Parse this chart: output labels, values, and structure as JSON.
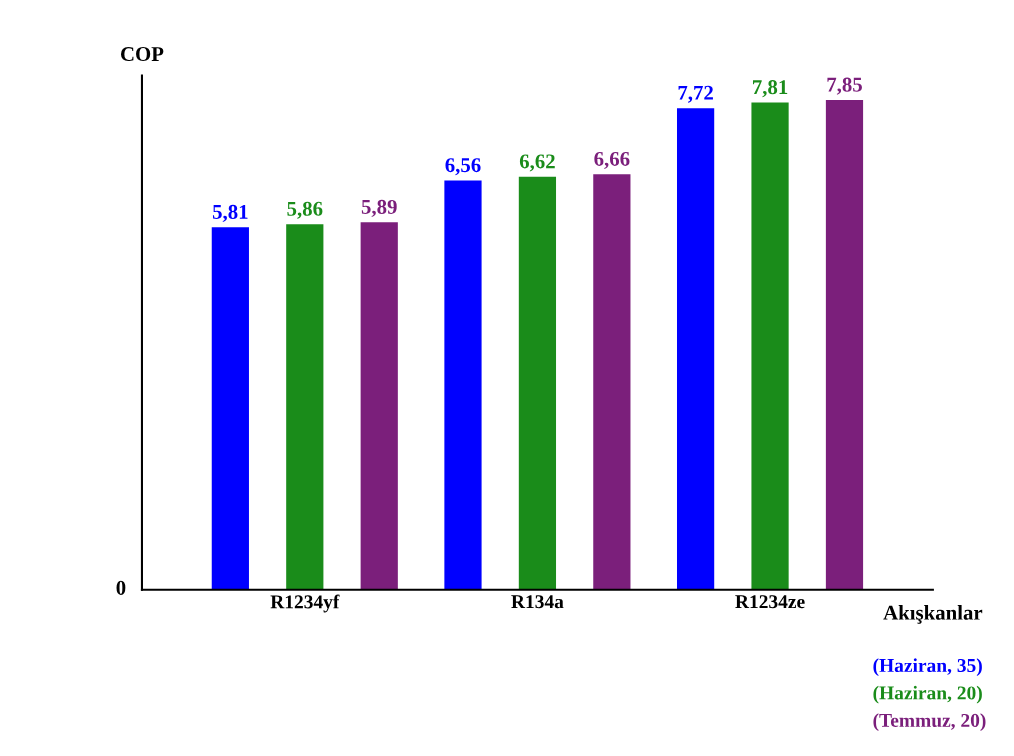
{
  "chart_data": {
    "type": "bar",
    "ylabel": "COP",
    "xlabel": "Akışkanlar",
    "categories": [
      "R1234yf",
      "R134a",
      "R1234ze"
    ],
    "series": [
      {
        "name": "(Haziran, 35)",
        "color": "#0000ff",
        "values": [
          5.81,
          6.56,
          7.72
        ],
        "value_labels": [
          "5,81",
          "6,56",
          "7,72"
        ]
      },
      {
        "name": "(Haziran, 20)",
        "color": "#1a8c1a",
        "values": [
          5.86,
          6.62,
          7.81
        ],
        "value_labels": [
          "5,86",
          "6,62",
          "7,81"
        ]
      },
      {
        "name": "(Temmuz, 20)",
        "color": "#7b1f7b",
        "values": [
          5.89,
          6.66,
          7.85
        ],
        "value_labels": [
          "5,89",
          "6,66",
          "7,85"
        ]
      }
    ],
    "annotations": [
      "0"
    ],
    "legend": "bottom right",
    "grid": false
  }
}
